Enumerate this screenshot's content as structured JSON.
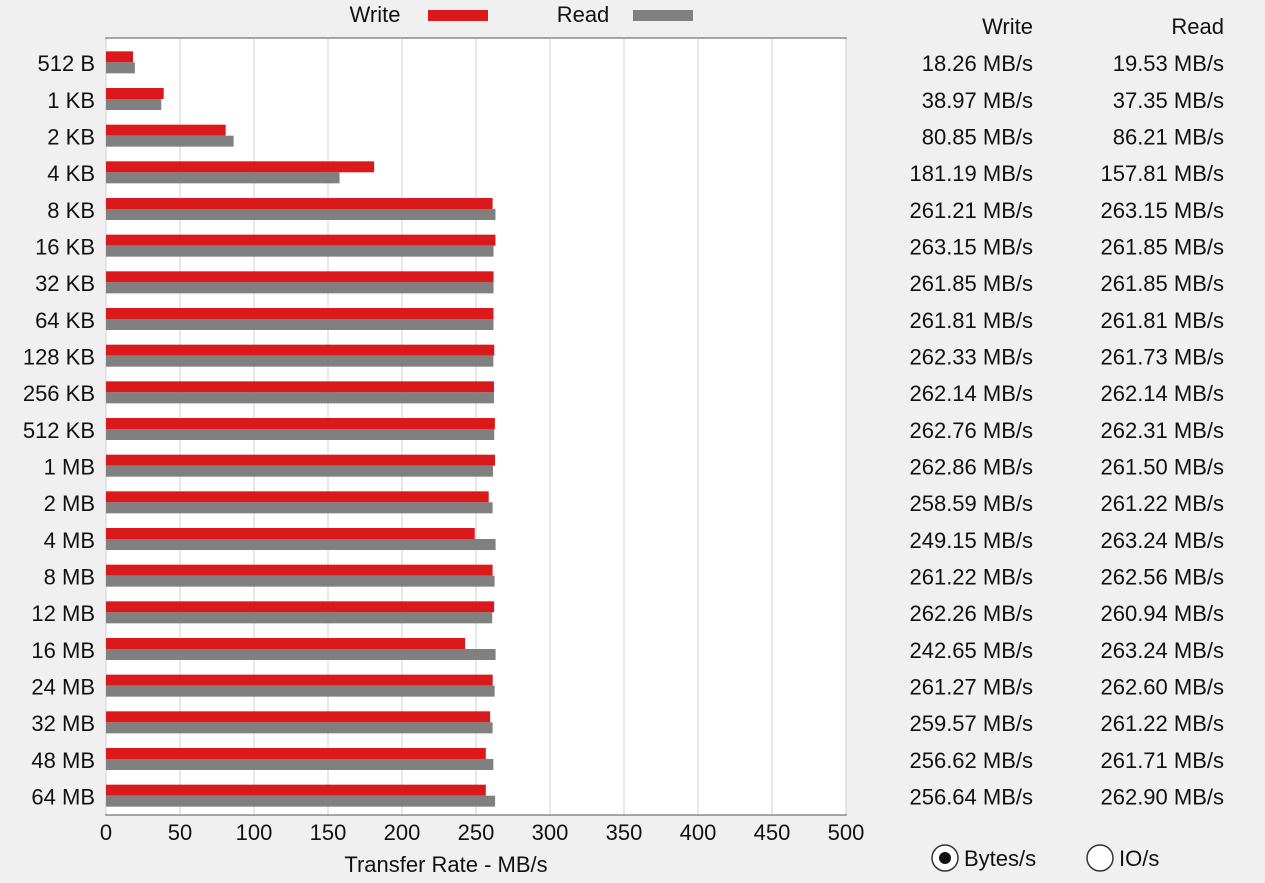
{
  "chart_data": {
    "type": "bar",
    "orientation": "horizontal",
    "xlabel": "Transfer Rate - MB/s",
    "categories": [
      "512 B",
      "1 KB",
      "2 KB",
      "4 KB",
      "8 KB",
      "16 KB",
      "32 KB",
      "64 KB",
      "128 KB",
      "256 KB",
      "512 KB",
      "1 MB",
      "2 MB",
      "4 MB",
      "8 MB",
      "12 MB",
      "16 MB",
      "24 MB",
      "32 MB",
      "48 MB",
      "64 MB"
    ],
    "series": [
      {
        "name": "Write",
        "color": "#d9191c",
        "values": [
          18.26,
          38.97,
          80.85,
          181.19,
          261.21,
          263.15,
          261.85,
          261.81,
          262.33,
          262.14,
          262.76,
          262.86,
          258.59,
          249.15,
          261.22,
          262.26,
          242.65,
          261.27,
          259.57,
          256.62,
          256.64
        ],
        "value_labels": [
          "18.26 MB/s",
          "38.97 MB/s",
          "80.85 MB/s",
          "181.19 MB/s",
          "261.21 MB/s",
          "263.15 MB/s",
          "261.85 MB/s",
          "261.81 MB/s",
          "262.33 MB/s",
          "262.14 MB/s",
          "262.76 MB/s",
          "262.86 MB/s",
          "258.59 MB/s",
          "249.15 MB/s",
          "261.22 MB/s",
          "262.26 MB/s",
          "242.65 MB/s",
          "261.27 MB/s",
          "259.57 MB/s",
          "256.62 MB/s",
          "256.64 MB/s"
        ]
      },
      {
        "name": "Read",
        "color": "#808080",
        "values": [
          19.53,
          37.35,
          86.21,
          157.81,
          263.15,
          261.85,
          261.85,
          261.81,
          261.73,
          262.14,
          262.31,
          261.5,
          261.22,
          263.24,
          262.56,
          260.94,
          263.24,
          262.6,
          261.22,
          261.71,
          262.9
        ],
        "value_labels": [
          "19.53 MB/s",
          "37.35 MB/s",
          "86.21 MB/s",
          "157.81 MB/s",
          "263.15 MB/s",
          "261.85 MB/s",
          "261.85 MB/s",
          "261.81 MB/s",
          "261.73 MB/s",
          "262.14 MB/s",
          "262.31 MB/s",
          "261.50 MB/s",
          "261.22 MB/s",
          "263.24 MB/s",
          "262.56 MB/s",
          "260.94 MB/s",
          "263.24 MB/s",
          "262.60 MB/s",
          "261.22 MB/s",
          "261.71 MB/s",
          "262.90 MB/s"
        ]
      }
    ],
    "xlim": [
      0,
      500
    ],
    "xticks": [
      0,
      50,
      100,
      150,
      200,
      250,
      300,
      350,
      400,
      450,
      500
    ],
    "grid": true
  },
  "units": {
    "options": [
      "Bytes/s",
      "IO/s"
    ],
    "selected": 0
  }
}
